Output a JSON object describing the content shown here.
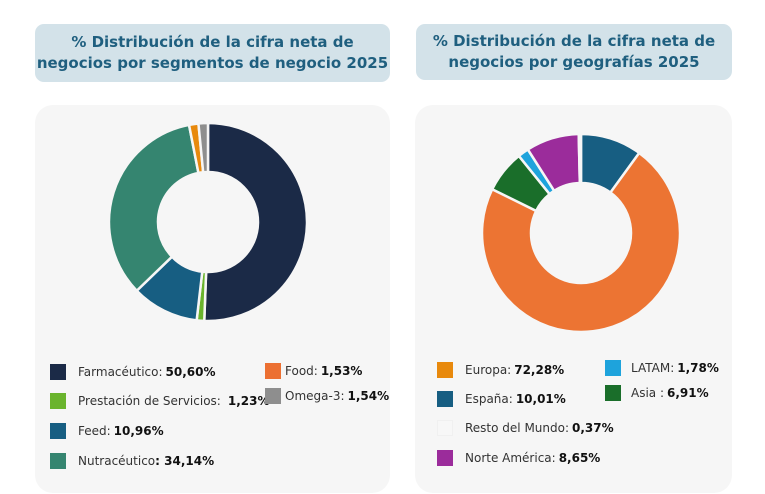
{
  "chart_data": [
    {
      "type": "pie",
      "donut": true,
      "title": "% Distribución de la cifra neta de negocios por segmentos de negocio 2025",
      "start": "top",
      "direction": "clockwise",
      "slices": [
        {
          "label": "Farmacéutico:",
          "value": 50.6,
          "value_text": "50,60%",
          "color": "#1b2a47"
        },
        {
          "label": "Prestación de Servicios:",
          "value": 1.23,
          "value_text": "1,23%",
          "color": "#6ab42d"
        },
        {
          "label": "Feed:",
          "value": 10.96,
          "value_text": "10,96%",
          "color": "#175e82"
        },
        {
          "label": "Nutracéutico",
          "value": 34.14,
          "value_text": ": 34,14%",
          "color": "#358570"
        },
        {
          "label": "Food:",
          "value": 1.53,
          "value_text": "1,53%",
          "color": "#ec7032",
          "slice_color": "#e8890c"
        },
        {
          "label": "Omega-3:",
          "value": 1.54,
          "value_text": "1,54%",
          "color": "#8e8e8e"
        }
      ],
      "legend_placement": "bottom"
    },
    {
      "type": "pie",
      "donut": true,
      "title": "% Distribución de la cifra neta de negocios por geografías 2025",
      "start": "top",
      "direction": "clockwise",
      "slices": [
        {
          "label": "España:",
          "value": 10.01,
          "value_text": "10,01%",
          "color": "#175e82"
        },
        {
          "label": "Europa:",
          "value": 72.28,
          "value_text": "72,28%",
          "color": "#e8890c",
          "slice_color": "#ec7433"
        },
        {
          "label": "Asia :",
          "value": 6.91,
          "value_text": "6,91%",
          "color": "#1a6e2a"
        },
        {
          "label": "LATAM:",
          "value": 1.78,
          "value_text": "1,78%",
          "color": "#1ea3dc"
        },
        {
          "label": "Norte América:",
          "value": 8.65,
          "value_text": "8,65%",
          "color": "#9b2c9b"
        },
        {
          "label": "Resto del Mundo:",
          "value": 0.37,
          "value_text": "0,37%",
          "color": "#f7f7f7"
        }
      ],
      "legend_placement": "bottom"
    }
  ],
  "headers": {
    "left": "% Distribución de la cifra neta de negocios por segmentos de negocio 2025",
    "right": "% Distribución de la cifra neta de negocios por geografías 2025"
  }
}
